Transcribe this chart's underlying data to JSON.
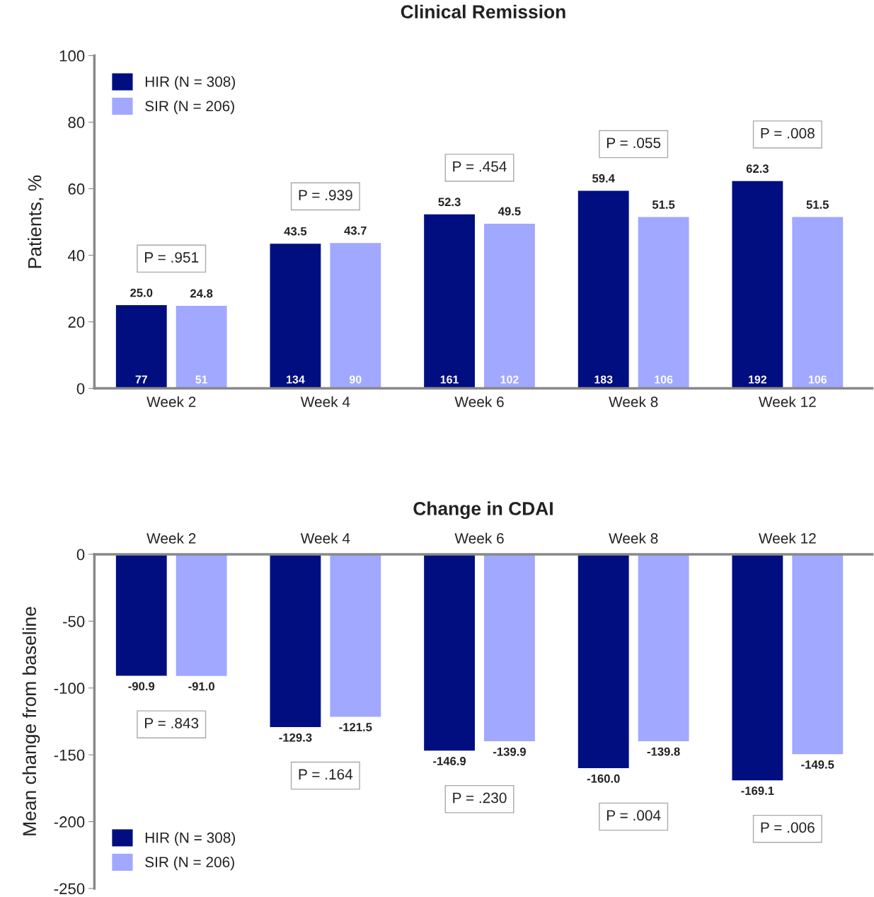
{
  "chart_data": [
    {
      "type": "bar",
      "title": "Clinical Remission",
      "ylabel": "Patients, %",
      "categories": [
        "Week 2",
        "Week 4",
        "Week 6",
        "Week 8",
        "Week 12"
      ],
      "series": [
        {
          "name": "HIR (N = 308)",
          "color": "#000e80",
          "values": [
            25.0,
            43.5,
            52.3,
            59.4,
            62.3
          ],
          "value_labels": [
            "25.0",
            "43.5",
            "52.3",
            "59.4",
            "62.3"
          ]
        },
        {
          "name": "SIR (N = 206)",
          "color": "#a0a8ff",
          "values": [
            24.8,
            43.7,
            49.5,
            51.5,
            51.5
          ],
          "value_labels": [
            "24.8",
            "43.7",
            "49.5",
            "51.5",
            "51.5"
          ]
        }
      ],
      "ylim": [
        0,
        100
      ],
      "yticks": [
        0,
        20,
        40,
        60,
        80,
        100
      ],
      "grid": false,
      "legend": "top left",
      "annotations": [
        "77",
        "51",
        "134",
        "90",
        "161",
        "102",
        "183",
        "106",
        "192",
        "106",
        "P = .951",
        "P = .939",
        "P = .454",
        "P = .055",
        "P = .008"
      ]
    },
    {
      "type": "bar",
      "title": "Change in CDAI",
      "ylabel": "Mean change from baseline",
      "categories": [
        "Week 2",
        "Week 4",
        "Week 6",
        "Week 8",
        "Week 12"
      ],
      "series": [
        {
          "name": "HIR (N = 308)",
          "color": "#000e80",
          "values": [
            -90.9,
            -129.3,
            -146.9,
            -160.0,
            -169.1
          ],
          "value_labels": [
            "-90.9",
            "-129.3",
            "-146.9",
            "-160.0",
            "-169.1"
          ]
        },
        {
          "name": "SIR (N = 206)",
          "color": "#a0a8ff",
          "values": [
            -91.0,
            -121.5,
            -139.9,
            -139.8,
            -149.5
          ],
          "value_labels": [
            "-91.0",
            "-121.5",
            "-139.9",
            "-139.8",
            "-149.5"
          ]
        }
      ],
      "ylim": [
        -250,
        0
      ],
      "yticks": [
        -250,
        -200,
        -150,
        -100,
        -50,
        0
      ],
      "grid": false,
      "legend": "bottom left",
      "annotations": [
        "P = .843",
        "P = .164",
        "P = .230",
        "P = .004",
        "P = .006"
      ]
    }
  ]
}
